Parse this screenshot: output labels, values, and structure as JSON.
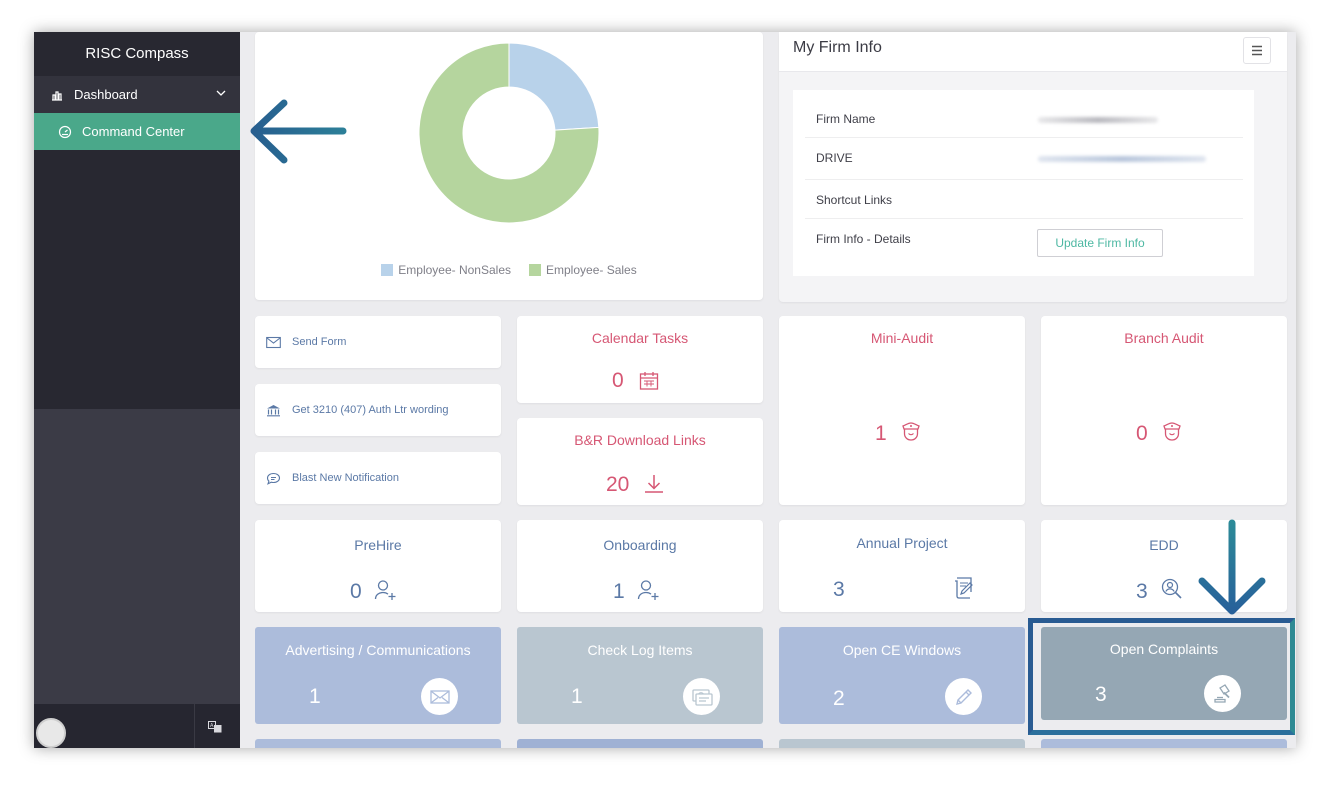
{
  "sidebar": {
    "brand": "RISC Compass",
    "dashboard_label": "Dashboard",
    "command_center_label": "Command Center",
    "colors": {
      "active": "#4aa88a",
      "background": "#282831"
    }
  },
  "chart_data": {
    "type": "pie",
    "title": "",
    "categories": [
      "Employee- NonSales",
      "Employee- Sales"
    ],
    "values": [
      24,
      76
    ],
    "colors": [
      "#b8d2ea",
      "#b5d59e"
    ],
    "donut": true,
    "legend": "bottom"
  },
  "firm_info": {
    "title": "My Firm Info",
    "rows": [
      {
        "label": "Firm Name"
      },
      {
        "label": "DRIVE"
      },
      {
        "label": "Shortcut Links"
      },
      {
        "label": "Firm Info - Details"
      }
    ],
    "update_button_label": "Update Firm Info"
  },
  "quick_links": [
    {
      "label": "Send Form",
      "icon": "envelope-icon"
    },
    {
      "label": "Get 3210 (407) Auth Ltr wording",
      "icon": "bank-icon"
    },
    {
      "label": "Blast New Notification",
      "icon": "chat-icon"
    }
  ],
  "widgets": {
    "calendar_tasks": {
      "title": "Calendar Tasks",
      "count": "0",
      "icon": "calendar-icon"
    },
    "br_download": {
      "title": "B&R Download Links",
      "count": "20",
      "icon": "download-icon"
    },
    "mini_audit": {
      "title": "Mini-Audit",
      "count": "1",
      "icon": "police-badge-icon"
    },
    "branch_audit": {
      "title": "Branch Audit",
      "count": "0",
      "icon": "police-badge-icon"
    },
    "prehire": {
      "title": "PreHire",
      "count": "0",
      "icon": "add-user-icon"
    },
    "onboarding": {
      "title": "Onboarding",
      "count": "1",
      "icon": "add-user-icon"
    },
    "annual_project": {
      "title": "Annual Project",
      "count": "3",
      "icon": "certificate-icon"
    },
    "edd": {
      "title": "EDD",
      "count": "3",
      "icon": "user-search-icon"
    }
  },
  "tiles": [
    {
      "title": "Advertising / Communications",
      "count": "1",
      "icon": "envelope-icon",
      "color": "#acbcdb"
    },
    {
      "title": "Check Log Items",
      "count": "1",
      "icon": "money-check-icon",
      "color": "#b9c6d0"
    },
    {
      "title": "Open CE Windows",
      "count": "2",
      "icon": "pencil-icon",
      "color": "#acbcdb"
    },
    {
      "title": "Open Complaints",
      "count": "3",
      "icon": "gavel-icon",
      "color": "#95a7b4"
    }
  ],
  "colors": {
    "pink": "#d65774",
    "blue": "#5b79a6",
    "annotation": "#2b6e9a"
  }
}
